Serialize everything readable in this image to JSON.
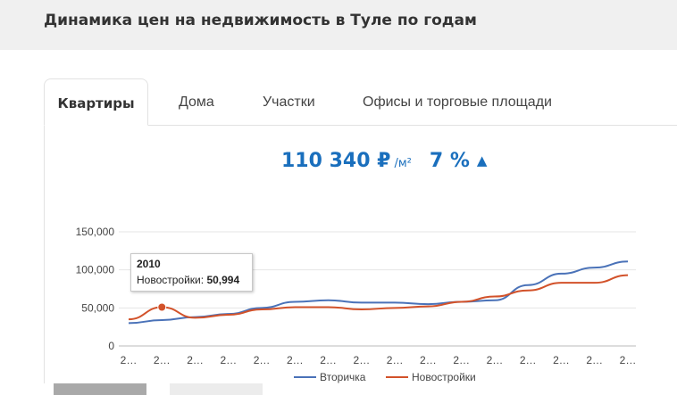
{
  "page": {
    "title": "Динамика цен на недвижимость в Туле по годам"
  },
  "tabs": [
    {
      "label": "Квартиры",
      "active": true
    },
    {
      "label": "Дома",
      "active": false
    },
    {
      "label": "Участки",
      "active": false
    },
    {
      "label": "Офисы и торговые площади",
      "active": false
    }
  ],
  "summary": {
    "price": "110 340 ₽",
    "unit": "/м²",
    "change": "7 %",
    "trend_icon": "triangle-up-icon"
  },
  "tooltip": {
    "year": "2010",
    "series_label": "Новостройки:",
    "value": "50,994"
  },
  "colors": {
    "accent": "#1a6fbd",
    "vtorichka": "#4a72b8",
    "novostroyki": "#d2522a"
  },
  "chart_data": {
    "type": "line",
    "x_tick_label": "2…",
    "x_count": 16,
    "y_ticks": [
      "150,000",
      "100,000",
      "50,000",
      "0"
    ],
    "ylim": [
      0,
      150000
    ],
    "legend_position": "bottom",
    "series": [
      {
        "name": "Вторичка",
        "values": [
          30000,
          34000,
          38000,
          42000,
          50000,
          58000,
          60000,
          57000,
          57000,
          55000,
          58000,
          60000,
          80000,
          95000,
          103000,
          111000
        ]
      },
      {
        "name": "Новостройки",
        "values": [
          35000,
          50994,
          37000,
          41000,
          48000,
          51000,
          51000,
          48000,
          50000,
          52000,
          58000,
          65000,
          73000,
          83000,
          83000,
          93000
        ]
      }
    ],
    "highlight": {
      "series": 1,
      "index": 1
    }
  }
}
